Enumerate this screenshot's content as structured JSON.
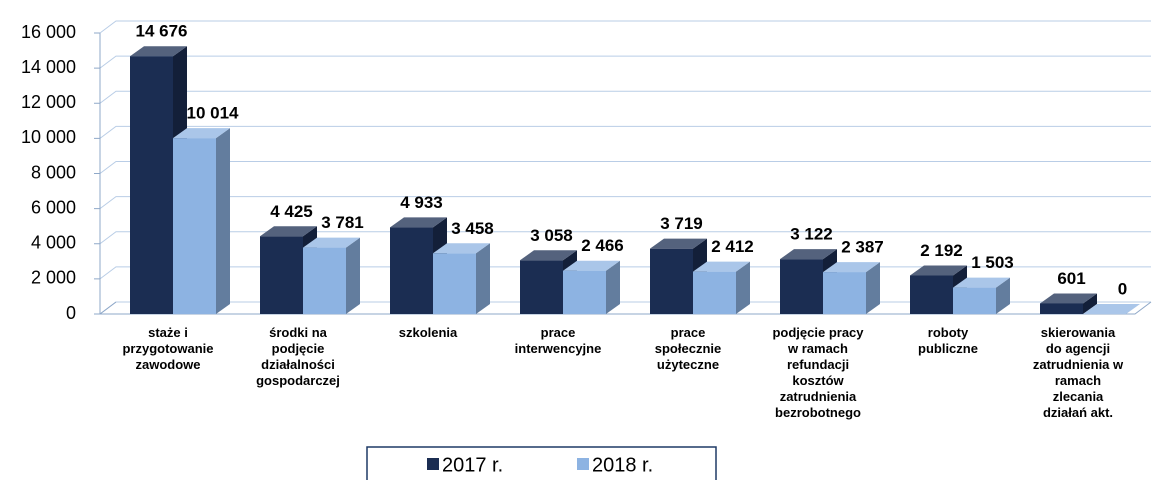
{
  "chart_data": {
    "type": "bar3d",
    "categories": [
      "staże i\nprzygotowanie\nzawodowe",
      "środki na\npodjęcie\ndziałalności\ngospodarczej",
      "szkolenia",
      "prace\ninterwencyjne",
      "prace\nspołecznie\nużyteczne",
      "podjęcie pracy\nw ramach\nrefundacji\nkosztów\nzatrudnienia\nbezrobotnego",
      "roboty\npubliczne",
      "skierowania\ndo agencji\nzatrudnienia w\nramach\nzlecania\ndziałań akt."
    ],
    "series": [
      {
        "name": "2017 r.",
        "color": "#1b2d52",
        "values": [
          14676,
          4425,
          4933,
          3058,
          3719,
          3122,
          2192,
          601
        ],
        "value_labels": [
          "14 676",
          "4 425",
          "4 933",
          "3 058",
          "3 719",
          "3 122",
          "2 192",
          "601"
        ]
      },
      {
        "name": "2018 r.",
        "color": "#8db3e2",
        "values": [
          10014,
          3781,
          3458,
          2466,
          2412,
          2387,
          1503,
          0
        ],
        "value_labels": [
          "10 014",
          "3 781",
          "3 458",
          "2 466",
          "2 412",
          "2 387",
          "1 503",
          "0"
        ]
      }
    ],
    "ylim": [
      0,
      16000
    ],
    "yticks": [
      0,
      {
        "value": 2000,
        "label": "2 000"
      },
      {
        "value": 4000,
        "label": "4 000"
      },
      {
        "value": 6000,
        "label": "6 000"
      },
      {
        "value": 8000,
        "label": "8 000"
      },
      {
        "value": 10000,
        "label": "10 000"
      },
      {
        "value": 12000,
        "label": "12 000"
      },
      {
        "value": 14000,
        "label": "14 000"
      },
      {
        "value": 16000,
        "label": "16 000"
      }
    ],
    "grid": true,
    "legend": "bottom"
  }
}
